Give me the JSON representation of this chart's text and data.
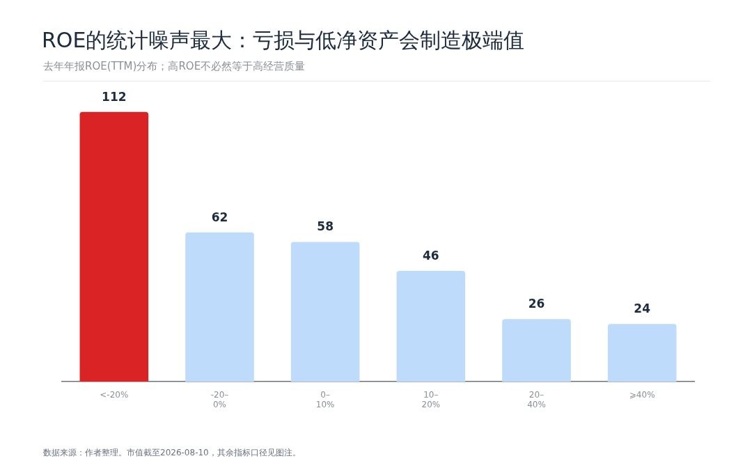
{
  "chart_data": {
    "type": "bar",
    "title": "ROE的统计噪声最大：亏损与低净资产会制造极端值",
    "subtitle": "去年年报ROE(TTM)分布；高ROE不必然等于高经营质量",
    "categories": [
      "<-20%",
      "-20–\n0%",
      "0–\n10%",
      "10–\n20%",
      "20–\n40%",
      "⩾40%"
    ],
    "values": [
      112,
      62,
      58,
      46,
      26,
      24
    ],
    "colors": [
      "#d92324",
      "#bfdbfb",
      "#bfdbfb",
      "#bfdbfb",
      "#bfdbfb",
      "#bfdbfb"
    ],
    "data_labels": true,
    "grid": false,
    "legend": false,
    "tick_labels": "x",
    "annotations": [
      "数据来源：作者整理。市值截至2026-08-10，其余指标口径见图注。"
    ]
  }
}
